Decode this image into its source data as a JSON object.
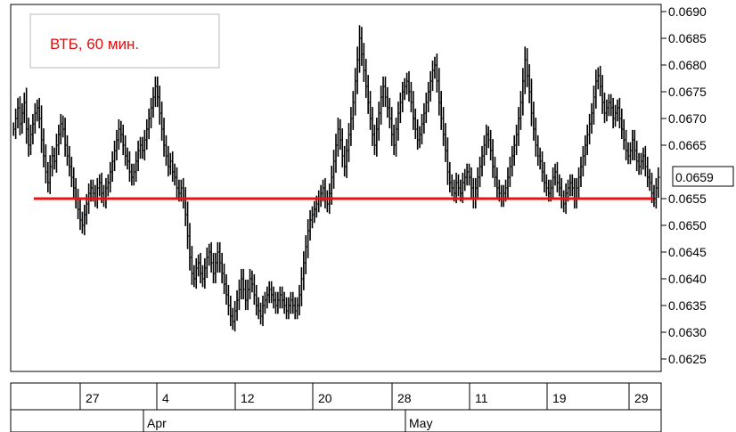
{
  "chart_data": {
    "type": "bar",
    "subtype": "hi-lo price bars",
    "title": "ВТБ, 60 мин.",
    "xlabel": "",
    "ylabel": "",
    "ylim": [
      0.0623,
      0.0691
    ],
    "y_ticks": [
      "0.0690",
      "0.0685",
      "0.0680",
      "0.0675",
      "0.0670",
      "0.0665",
      "0.0659",
      "0.0655",
      "0.0650",
      "0.0645",
      "0.0640",
      "0.0635",
      "0.0630",
      "0.0625"
    ],
    "last_value_label": "0.0659",
    "grid": false,
    "legend": "none",
    "x_day_labels": [
      "27",
      "4",
      "12",
      "20",
      "28",
      "11",
      "19",
      "29"
    ],
    "x_month_labels": [
      "Apr",
      "May"
    ],
    "series": [
      {
        "values": [
          0.0668,
          0.067,
          0.0672,
          0.0669,
          0.0671,
          0.0673,
          0.0668,
          0.0665,
          0.0667,
          0.0669,
          0.0671,
          0.0672,
          0.067,
          0.0666,
          0.0663,
          0.066,
          0.0658,
          0.0661,
          0.0663,
          0.0662,
          0.0665,
          0.0667,
          0.0669,
          0.0668,
          0.0665,
          0.0663,
          0.0661,
          0.0659,
          0.0657,
          0.0655,
          0.0653,
          0.0651,
          0.065,
          0.0652,
          0.0654,
          0.0656,
          0.0657,
          0.0656,
          0.0655,
          0.0657,
          0.0658,
          0.0656,
          0.0655,
          0.0657,
          0.0658,
          0.066,
          0.0662,
          0.0664,
          0.0666,
          0.0668,
          0.0667,
          0.0665,
          0.0663,
          0.0662,
          0.066,
          0.0659,
          0.066,
          0.0662,
          0.0664,
          0.0665,
          0.0664,
          0.0666,
          0.0668,
          0.067,
          0.0672,
          0.0674,
          0.0676,
          0.0674,
          0.0671,
          0.0668,
          0.0665,
          0.0663,
          0.0661,
          0.0662,
          0.066,
          0.0659,
          0.0657,
          0.0656,
          0.0657,
          0.0655,
          0.0652,
          0.0648,
          0.0644,
          0.0641,
          0.064,
          0.0642,
          0.0643,
          0.0641,
          0.064,
          0.0642,
          0.0644,
          0.0645,
          0.0643,
          0.0641,
          0.0643,
          0.0645,
          0.0643,
          0.0641,
          0.0639,
          0.0637,
          0.0635,
          0.0633,
          0.0632,
          0.0634,
          0.0636,
          0.0638,
          0.064,
          0.0638,
          0.0636,
          0.0638,
          0.064,
          0.0639,
          0.0637,
          0.0635,
          0.0634,
          0.0633,
          0.0635,
          0.0636,
          0.0637,
          0.0638,
          0.0637,
          0.0636,
          0.0635,
          0.0636,
          0.0637,
          0.0636,
          0.0635,
          0.0634,
          0.0635,
          0.0636,
          0.0635,
          0.0634,
          0.0635,
          0.0637,
          0.064,
          0.0643,
          0.0646,
          0.0649,
          0.0651,
          0.0652,
          0.0653,
          0.0654,
          0.0655,
          0.0656,
          0.0657,
          0.0655,
          0.0654,
          0.0656,
          0.0659,
          0.0662,
          0.0665,
          0.0668,
          0.0666,
          0.0663,
          0.0661,
          0.0664,
          0.0667,
          0.067,
          0.0673,
          0.0677,
          0.0681,
          0.0685,
          0.0682,
          0.0679,
          0.0676,
          0.0673,
          0.067,
          0.0667,
          0.0665,
          0.0668,
          0.0671,
          0.0674,
          0.0676,
          0.0674,
          0.0672,
          0.067,
          0.0667,
          0.0665,
          0.0668,
          0.0671,
          0.0673,
          0.0675,
          0.0676,
          0.0677,
          0.0675,
          0.0673,
          0.067,
          0.0668,
          0.0666,
          0.0667,
          0.0669,
          0.0671,
          0.0673,
          0.0675,
          0.0677,
          0.0679,
          0.068,
          0.0677,
          0.0673,
          0.067,
          0.0667,
          0.0664,
          0.066,
          0.0658,
          0.0657,
          0.0656,
          0.0658,
          0.0657,
          0.0656,
          0.0658,
          0.0659,
          0.066,
          0.0659,
          0.0657,
          0.0655,
          0.0657,
          0.0659,
          0.0661,
          0.0663,
          0.0665,
          0.0667,
          0.0666,
          0.0664,
          0.0661,
          0.0659,
          0.0657,
          0.0656,
          0.0655,
          0.0656,
          0.0657,
          0.0659,
          0.0661,
          0.0663,
          0.0665,
          0.0667,
          0.067,
          0.0673,
          0.0677,
          0.0681,
          0.0678,
          0.0675,
          0.0671,
          0.0668,
          0.0665,
          0.0663,
          0.0662,
          0.066,
          0.0658,
          0.0657,
          0.0656,
          0.0657,
          0.0659,
          0.066,
          0.0658,
          0.0657,
          0.0655,
          0.0654,
          0.0656,
          0.0657,
          0.0658,
          0.0657,
          0.0655,
          0.0657,
          0.0659,
          0.0661,
          0.0663,
          0.0665,
          0.0667,
          0.0669,
          0.0671,
          0.0674,
          0.0677,
          0.0678,
          0.0676,
          0.0673,
          0.0671,
          0.0672,
          0.0673,
          0.0672,
          0.067,
          0.0671,
          0.0672,
          0.067,
          0.0668,
          0.0666,
          0.0664,
          0.0663,
          0.0664,
          0.0666,
          0.0664,
          0.0662,
          0.0661,
          0.0662,
          0.0663,
          0.0661,
          0.0659,
          0.0658,
          0.0656,
          0.0655,
          0.0657,
          0.0659
        ]
      }
    ],
    "horizontal_line": {
      "value": 0.0655,
      "color": "#ee1111"
    }
  },
  "colors": {
    "bars": "#000000",
    "reference_line": "#ee1111",
    "title_text": "#dd1111",
    "frame": "#000000",
    "background": "#ffffff"
  }
}
